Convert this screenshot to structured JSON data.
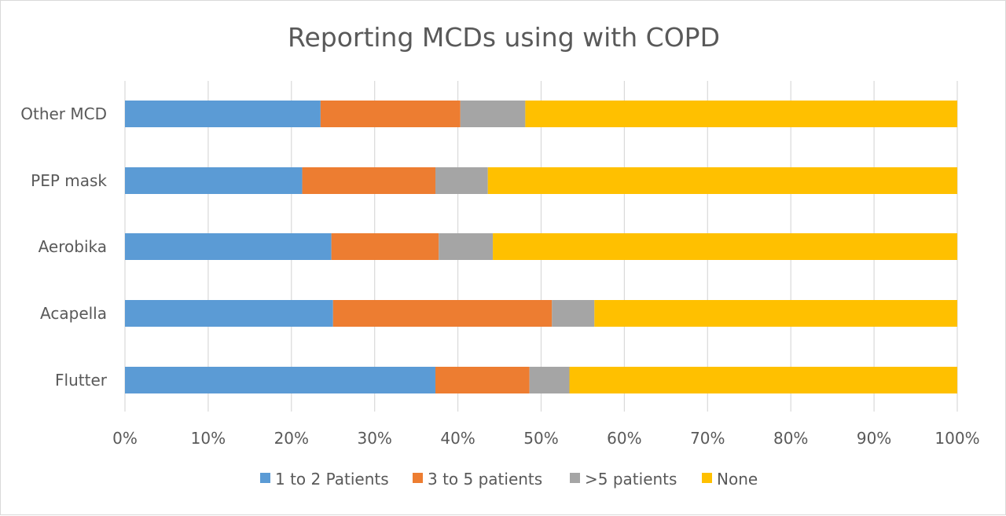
{
  "chart_data": {
    "type": "bar",
    "orientation": "horizontal",
    "stacked": "percent",
    "title": "Reporting MCDs using with COPD",
    "categories": [
      "Other MCD",
      "PEP mask",
      "Aerobika",
      "Acapella",
      "Flutter"
    ],
    "series": [
      {
        "name": "1 to 2 Patients",
        "color": "#5B9BD5",
        "values": [
          23.5,
          21.3,
          24.8,
          25.0,
          37.3
        ]
      },
      {
        "name": "3 to 5 patients",
        "color": "#ED7D31",
        "values": [
          16.8,
          16.0,
          12.9,
          26.3,
          11.3
        ]
      },
      {
        "name": ">5 patients",
        "color": "#A5A5A5",
        "values": [
          7.8,
          6.3,
          6.5,
          5.1,
          4.8
        ]
      },
      {
        "name": "None",
        "color": "#FFC000",
        "values": [
          51.9,
          56.4,
          55.8,
          43.6,
          46.6
        ]
      }
    ],
    "xlim": [
      0,
      100
    ],
    "x_ticks": [
      "0%",
      "10%",
      "20%",
      "30%",
      "40%",
      "50%",
      "60%",
      "70%",
      "80%",
      "90%",
      "100%"
    ],
    "grid": "vertical",
    "legend_position": "bottom"
  }
}
